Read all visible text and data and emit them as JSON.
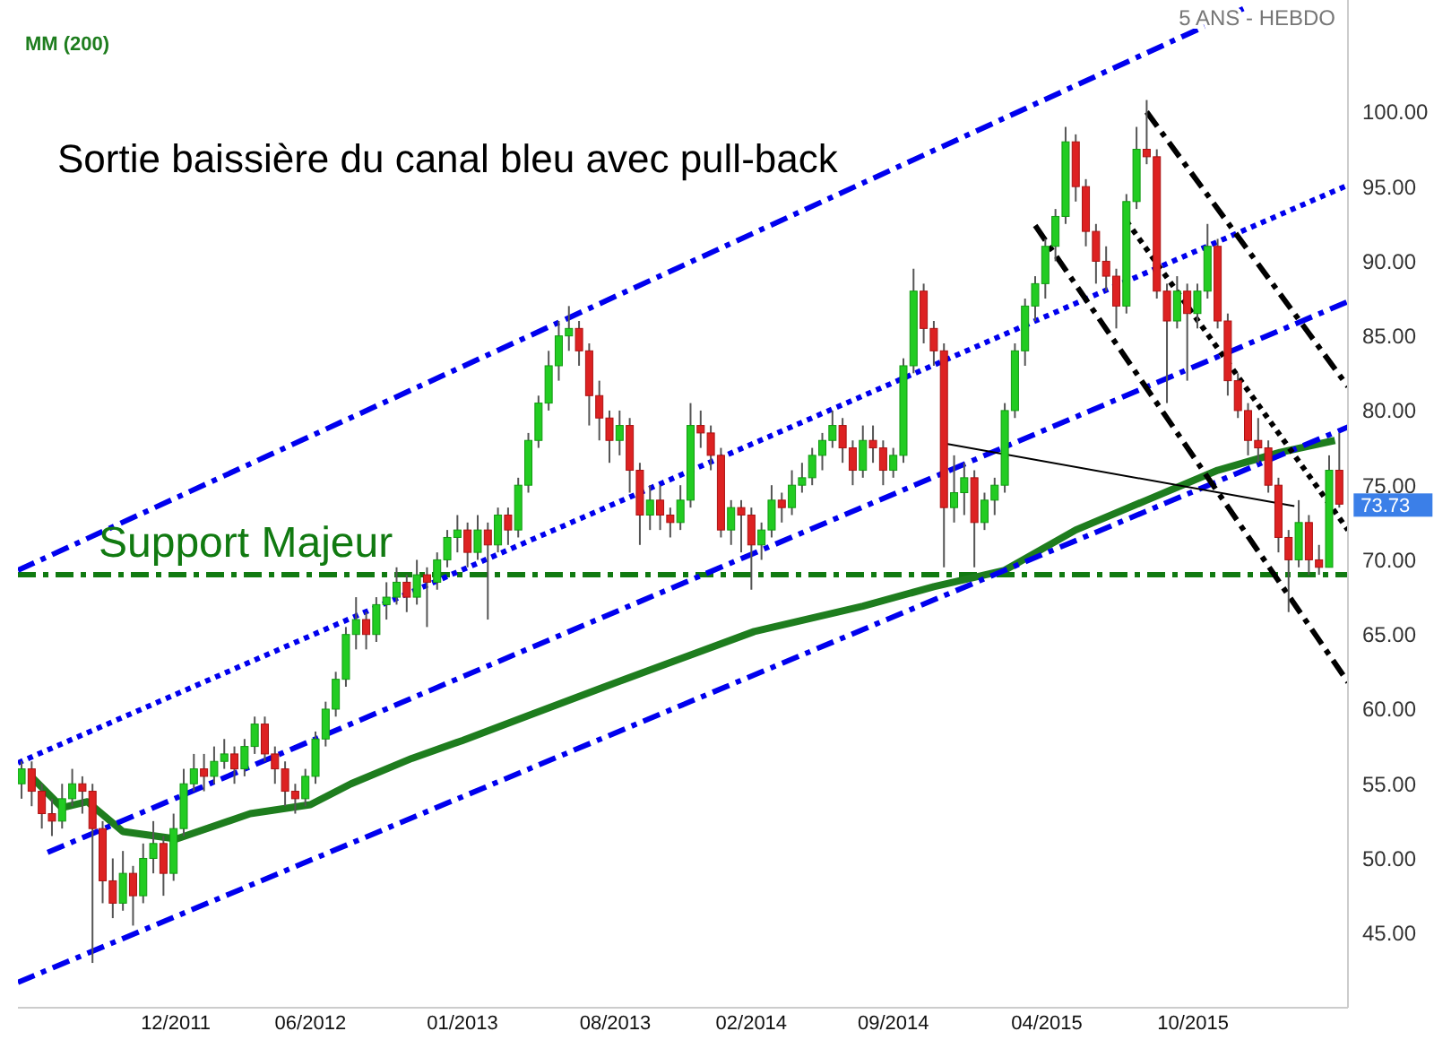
{
  "chart_data": {
    "type": "candlestick",
    "title": "Sortie baissière  du canal bleu avec pull-back",
    "subtitle": "5 ANS - HEBDO",
    "x": [
      "2011-05-16",
      "2011-05-30",
      "2011-06-13",
      "2011-06-27",
      "2011-07-11",
      "2011-07-25",
      "2011-08-08",
      "2011-08-22",
      "2011-09-05",
      "2011-09-19",
      "2011-10-03",
      "2011-10-17",
      "2011-10-31",
      "2011-11-14",
      "2011-11-28",
      "2011-12-12",
      "2011-12-26",
      "2012-01-09",
      "2012-01-23",
      "2012-02-06",
      "2012-02-20",
      "2012-03-05",
      "2012-03-19",
      "2012-04-02",
      "2012-04-16",
      "2012-04-30",
      "2012-05-14",
      "2012-05-28",
      "2012-06-11",
      "2012-06-25",
      "2012-07-09",
      "2012-07-23",
      "2012-08-06",
      "2012-08-20",
      "2012-09-03",
      "2012-09-17",
      "2012-10-01",
      "2012-10-15",
      "2012-10-29",
      "2012-11-12",
      "2012-11-26",
      "2012-12-10",
      "2012-12-24",
      "2013-01-07",
      "2013-01-21",
      "2013-02-04",
      "2013-02-18",
      "2013-03-04",
      "2013-03-18",
      "2013-04-01",
      "2013-04-15",
      "2013-04-29",
      "2013-05-13",
      "2013-05-27",
      "2013-06-10",
      "2013-06-24",
      "2013-07-08",
      "2013-07-22",
      "2013-08-05",
      "2013-08-19",
      "2013-09-02",
      "2013-09-16",
      "2013-09-30",
      "2013-10-14",
      "2013-10-28",
      "2013-11-11",
      "2013-11-25",
      "2013-12-09",
      "2013-12-23",
      "2014-01-06",
      "2014-01-20",
      "2014-02-03",
      "2014-02-17",
      "2014-03-03",
      "2014-03-17",
      "2014-03-31",
      "2014-04-14",
      "2014-04-28",
      "2014-05-12",
      "2014-05-26",
      "2014-06-09",
      "2014-06-23",
      "2014-07-07",
      "2014-07-21",
      "2014-08-04",
      "2014-08-18",
      "2014-09-01",
      "2014-09-15",
      "2014-09-29",
      "2014-10-13",
      "2014-10-27",
      "2014-11-10",
      "2014-11-24",
      "2014-12-08",
      "2014-12-22",
      "2015-01-05",
      "2015-01-19",
      "2015-02-02",
      "2015-02-16",
      "2015-03-02",
      "2015-03-16",
      "2015-03-30",
      "2015-04-13",
      "2015-04-27",
      "2015-05-11",
      "2015-05-25",
      "2015-06-08",
      "2015-06-22",
      "2015-07-06",
      "2015-07-20",
      "2015-08-03",
      "2015-08-17",
      "2015-08-31",
      "2015-09-14",
      "2015-09-28",
      "2015-10-12",
      "2015-10-26",
      "2015-11-09",
      "2015-11-23",
      "2015-12-07",
      "2015-12-21",
      "2016-01-04",
      "2016-01-18",
      "2016-02-01",
      "2016-02-15",
      "2016-02-29",
      "2016-03-14",
      "2016-03-28",
      "2016-04-11",
      "2016-04-25",
      "2016-05-09"
    ],
    "ohlc": [
      [
        55,
        56.5,
        54,
        56
      ],
      [
        56,
        56.5,
        53.5,
        54.5
      ],
      [
        54.5,
        55,
        52,
        53
      ],
      [
        53,
        54,
        51.5,
        52.5
      ],
      [
        52.5,
        55,
        52,
        54
      ],
      [
        54,
        56,
        53.5,
        55
      ],
      [
        55,
        55.5,
        53,
        54.5
      ],
      [
        54.5,
        55,
        43,
        52
      ],
      [
        52,
        52.5,
        47,
        48.5
      ],
      [
        48.5,
        50,
        46,
        47
      ],
      [
        47,
        50.5,
        46.5,
        49
      ],
      [
        49,
        49.5,
        45.5,
        47.5
      ],
      [
        47.5,
        51,
        47,
        50
      ],
      [
        50,
        52.5,
        49,
        51
      ],
      [
        51,
        51.5,
        47.5,
        49
      ],
      [
        49,
        53,
        48.5,
        52
      ],
      [
        52,
        56,
        51.5,
        55
      ],
      [
        55,
        57,
        54.5,
        56
      ],
      [
        56,
        57,
        54.5,
        55.5
      ],
      [
        55.5,
        57.5,
        55,
        56.5
      ],
      [
        56.5,
        58,
        56,
        57
      ],
      [
        57,
        57.5,
        55,
        56
      ],
      [
        56,
        58,
        55.5,
        57.5
      ],
      [
        57.5,
        59.5,
        57,
        59
      ],
      [
        59,
        59.5,
        56.5,
        57
      ],
      [
        57,
        57.5,
        55,
        56
      ],
      [
        56,
        56.5,
        53.5,
        54.5
      ],
      [
        54.5,
        55,
        53,
        54
      ],
      [
        54,
        56,
        53.5,
        55.5
      ],
      [
        55.5,
        58.5,
        55,
        58
      ],
      [
        58,
        60.5,
        57.5,
        60
      ],
      [
        60,
        62.5,
        59.5,
        62
      ],
      [
        62,
        65.5,
        61.5,
        65
      ],
      [
        65,
        67.5,
        64,
        66
      ],
      [
        66,
        66.5,
        64,
        65
      ],
      [
        65,
        67.5,
        64.5,
        67
      ],
      [
        67,
        68.5,
        66,
        67.5
      ],
      [
        67.5,
        69.5,
        67,
        68.5
      ],
      [
        68.5,
        69,
        66.5,
        67.5
      ],
      [
        67.5,
        70,
        67,
        69
      ],
      [
        69,
        69.5,
        65.5,
        68.5
      ],
      [
        68.5,
        70.5,
        68,
        70
      ],
      [
        70,
        72,
        69.5,
        71.5
      ],
      [
        71.5,
        73,
        70.5,
        72
      ],
      [
        72,
        72.5,
        69.5,
        70.5
      ],
      [
        70.5,
        73,
        70,
        72
      ],
      [
        72,
        72.5,
        66,
        71
      ],
      [
        71,
        73.5,
        70.5,
        73
      ],
      [
        73,
        73.5,
        71,
        72
      ],
      [
        72,
        75.5,
        71.5,
        75
      ],
      [
        75,
        78.5,
        74.5,
        78
      ],
      [
        78,
        81,
        77.5,
        80.5
      ],
      [
        80.5,
        84,
        80,
        83
      ],
      [
        83,
        86,
        82,
        85
      ],
      [
        85,
        87,
        84,
        85.5
      ],
      [
        85.5,
        86,
        83,
        84
      ],
      [
        84,
        84.5,
        79,
        81
      ],
      [
        81,
        82,
        78,
        79.5
      ],
      [
        79.5,
        80,
        76.5,
        78
      ],
      [
        78,
        80,
        77,
        79
      ],
      [
        79,
        79.5,
        74.5,
        76
      ],
      [
        76,
        76.5,
        71,
        73
      ],
      [
        73,
        75,
        72,
        74
      ],
      [
        74,
        75,
        72,
        73
      ],
      [
        73,
        73.5,
        71.5,
        72.5
      ],
      [
        72.5,
        75,
        72,
        74
      ],
      [
        74,
        80.5,
        73.5,
        79
      ],
      [
        79,
        80,
        77.5,
        78.5
      ],
      [
        78.5,
        79,
        76,
        77
      ],
      [
        77,
        77.5,
        71.5,
        72
      ],
      [
        72,
        74,
        71,
        73.5
      ],
      [
        73.5,
        74,
        70.5,
        73
      ],
      [
        73,
        73.5,
        68,
        71
      ],
      [
        71,
        72.5,
        70,
        72
      ],
      [
        72,
        75,
        71.5,
        74
      ],
      [
        74,
        74.5,
        72.5,
        73.5
      ],
      [
        73.5,
        76,
        73,
        75
      ],
      [
        75,
        76.5,
        74.5,
        75.5
      ],
      [
        75.5,
        77.5,
        75,
        77
      ],
      [
        77,
        78.5,
        76,
        78
      ],
      [
        78,
        80,
        77.5,
        79
      ],
      [
        79,
        79.5,
        76.5,
        77.5
      ],
      [
        77.5,
        78,
        75,
        76
      ],
      [
        76,
        79,
        75.5,
        78
      ],
      [
        78,
        79,
        76.5,
        77.5
      ],
      [
        77.5,
        78,
        75,
        76
      ],
      [
        76,
        77.5,
        75.5,
        77
      ],
      [
        77,
        83.5,
        76.5,
        83
      ],
      [
        83,
        89.5,
        82.5,
        88
      ],
      [
        88,
        88.5,
        84.5,
        85.5
      ],
      [
        85.5,
        86,
        83,
        84
      ],
      [
        84,
        84.5,
        69.5,
        73.5
      ],
      [
        73.5,
        77,
        72.5,
        74.5
      ],
      [
        74.5,
        76.5,
        73,
        75.5
      ],
      [
        75.5,
        76,
        69.5,
        72.5
      ],
      [
        72.5,
        74.5,
        72,
        74
      ],
      [
        74,
        75.5,
        73,
        75
      ],
      [
        75,
        80.5,
        74.5,
        80
      ],
      [
        80,
        84.5,
        79.5,
        84
      ],
      [
        84,
        87.5,
        83,
        87
      ],
      [
        87,
        89,
        86,
        88.5
      ],
      [
        88.5,
        91.5,
        87.5,
        91
      ],
      [
        91,
        93.5,
        90,
        93
      ],
      [
        93,
        99,
        92.5,
        98
      ],
      [
        98,
        98.5,
        94,
        95
      ],
      [
        95,
        95.5,
        91,
        92
      ],
      [
        92,
        92.5,
        88.5,
        90
      ],
      [
        90,
        91,
        88,
        89
      ],
      [
        89,
        89.5,
        85.5,
        87
      ],
      [
        87,
        94.5,
        86.5,
        94
      ],
      [
        94,
        99,
        93.5,
        97.5
      ],
      [
        97.5,
        100.8,
        96.5,
        97
      ],
      [
        97,
        97.5,
        87.5,
        88
      ],
      [
        88,
        88.5,
        80.5,
        86
      ],
      [
        86,
        89,
        85.5,
        88
      ],
      [
        88,
        88.5,
        82,
        86.5
      ],
      [
        86.5,
        88.5,
        85.5,
        88
      ],
      [
        88,
        92.5,
        87.5,
        91
      ],
      [
        91,
        91.5,
        85.5,
        86
      ],
      [
        86,
        86.5,
        81,
        82
      ],
      [
        82,
        82.5,
        79.5,
        80
      ],
      [
        80,
        80.5,
        77,
        78
      ],
      [
        78,
        79.5,
        76.5,
        77.5
      ],
      [
        77.5,
        78,
        74.5,
        75
      ],
      [
        75,
        75.5,
        70.5,
        71.5
      ],
      [
        71.5,
        72,
        66.5,
        70
      ],
      [
        70,
        74,
        69.5,
        72.5
      ],
      [
        72.5,
        73,
        69,
        70
      ],
      [
        70,
        71,
        69,
        69.5
      ],
      [
        69.5,
        77,
        69.5,
        76
      ],
      [
        76,
        78.5,
        73.5,
        73.73
      ]
    ],
    "series": [
      {
        "type": "line",
        "name": "MM (200)",
        "color": "#1e7d1e",
        "line_style": "solid",
        "x": [
          "2011-05-29",
          "2011-07-11",
          "2011-08-15",
          "2011-10-03",
          "2011-12-16",
          "2012-03-27",
          "2012-06-18",
          "2012-08-13",
          "2012-11-05",
          "2013-01-14",
          "2013-04-22",
          "2013-08-26",
          "2014-02-21",
          "2014-07-21",
          "2014-10-27",
          "2015-02-02",
          "2015-05-11",
          "2015-08-17",
          "2015-11-23",
          "2016-02-17",
          "2016-05-03"
        ],
        "values": [
          55.5,
          53.4,
          53.8,
          51.8,
          51.3,
          53,
          53.6,
          55,
          56.7,
          57.9,
          59.7,
          62,
          65.2,
          66.9,
          68.2,
          69.3,
          72,
          74,
          76,
          77.2,
          78
        ]
      },
      {
        "type": "line",
        "color": "#0000ee",
        "line_style": "dashed",
        "x": [
          "2011-05-11",
          "2016-01-01"
        ],
        "values": [
          69.3,
          107
        ]
      },
      {
        "type": "line",
        "color": "#0000ee",
        "line_style": "dashed",
        "x": [
          "2011-05-11",
          "2016-05-21"
        ],
        "values": [
          41.7,
          78.9
        ]
      },
      {
        "type": "line",
        "color": "#0000ee",
        "line_style": "dotted",
        "x": [
          "2011-05-11",
          "2016-05-21"
        ],
        "values": [
          56.4,
          95.1
        ]
      },
      {
        "type": "line",
        "color": "#0000ee",
        "line_style": "dashed",
        "x": [
          "2011-06-21",
          "2016-05-21"
        ],
        "values": [
          50.4,
          87.3
        ]
      },
      {
        "type": "line",
        "color": "#000000",
        "line_style": "dashed",
        "x": [
          "2015-08-17",
          "2016-05-21"
        ],
        "values": [
          100,
          81.6
        ]
      },
      {
        "type": "line",
        "color": "#000000",
        "line_style": "dashed",
        "x": [
          "2015-03-16",
          "2016-05-21"
        ],
        "values": [
          92.4,
          61.8
        ]
      },
      {
        "type": "line",
        "color": "#000000",
        "line_style": "dotted",
        "x": [
          "2015-07-20",
          "2016-05-21"
        ],
        "values": [
          92.7,
          72
        ]
      },
      {
        "type": "line",
        "color": "#000000",
        "line_style": "solid",
        "x": [
          "2014-11-10",
          "2016-03-08"
        ],
        "values": [
          77.8,
          73.6
        ]
      }
    ],
    "ref_lines": [
      {
        "axis": "y",
        "value": 69,
        "label": "Support Majeur",
        "color": "#117a11",
        "line_style": "dashed"
      }
    ],
    "annotations": [
      {
        "text": "73.73",
        "x": "2016-05-09",
        "y": 73.73
      }
    ],
    "xlim": [
      "2011-05-11",
      "2016-05-21"
    ],
    "xticks": [
      {
        "value": "2011-12-15",
        "label": "12/2011"
      },
      {
        "value": "2012-06-18",
        "label": "06/2012"
      },
      {
        "value": "2013-01-14",
        "label": "01/2013"
      },
      {
        "value": "2013-08-13",
        "label": "08/2013"
      },
      {
        "value": "2014-02-17",
        "label": "02/2014"
      },
      {
        "value": "2014-09-01",
        "label": "09/2014"
      },
      {
        "value": "2015-04-01",
        "label": "04/2015"
      },
      {
        "value": "2015-10-20",
        "label": "10/2015"
      }
    ],
    "ylim": [
      40,
      107.5
    ],
    "yticks": [
      {
        "value": 45,
        "label": "45.00"
      },
      {
        "value": 50,
        "label": "50.00"
      },
      {
        "value": 55,
        "label": "55.00"
      },
      {
        "value": 60,
        "label": "60.00"
      },
      {
        "value": 65,
        "label": "65.00"
      },
      {
        "value": 70,
        "label": "70.00"
      },
      {
        "value": 75,
        "label": "75.00"
      },
      {
        "value": 80,
        "label": "80.00"
      },
      {
        "value": 85,
        "label": "85.00"
      },
      {
        "value": 90,
        "label": "90.00"
      },
      {
        "value": 95,
        "label": "95.00"
      },
      {
        "value": 100,
        "label": "100.00"
      }
    ],
    "grid": false,
    "legend": "top left"
  }
}
